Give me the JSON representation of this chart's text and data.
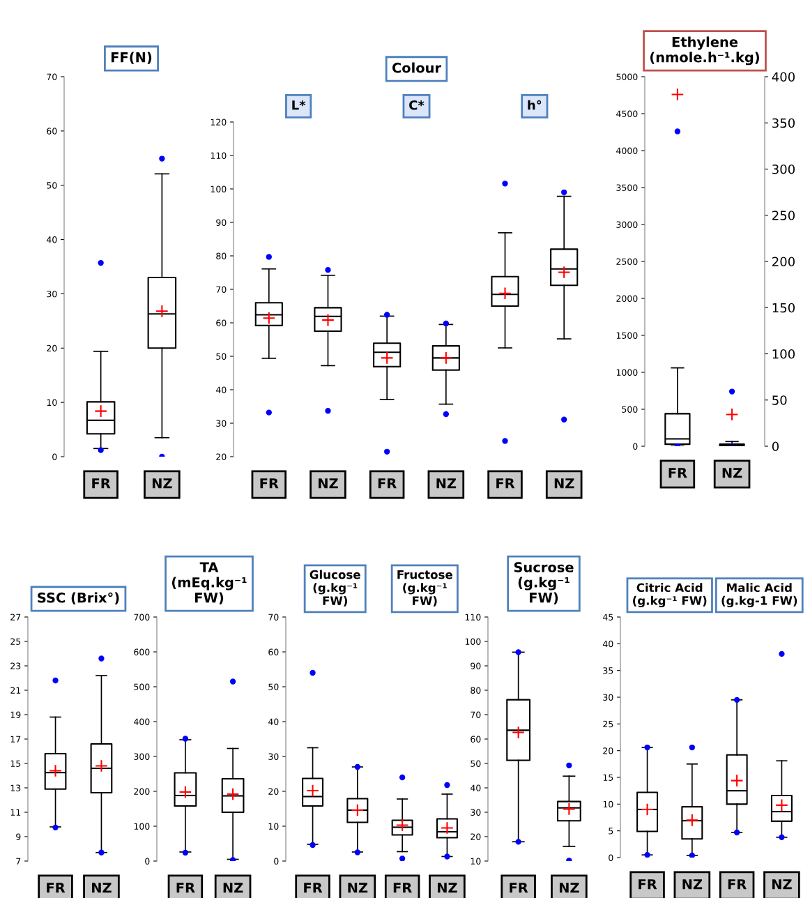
{
  "chart_data": [
    {
      "type": "box",
      "title": "FF(N)",
      "categories": [
        "FR",
        "NZ"
      ],
      "ylim": [
        0,
        70
      ],
      "yticks": [
        0,
        10,
        20,
        30,
        40,
        50,
        60,
        70
      ],
      "grid": false,
      "boxes": [
        {
          "low": 1.5,
          "q1": 4.2,
          "median": 6.7,
          "q3": 10.1,
          "high": 19.4,
          "mean": 8.4,
          "outliers": [
            35.7,
            1.2
          ]
        },
        {
          "low": 3.5,
          "q1": 20,
          "median": 26.3,
          "q3": 33,
          "high": 52.1,
          "mean": 26.8,
          "outliers": [
            54.9,
            0
          ]
        }
      ]
    },
    {
      "type": "box",
      "title": "Colour",
      "annotations": [
        "L*",
        "C*",
        "h°"
      ],
      "categories": [
        "FR",
        "NZ",
        "FR",
        "NZ",
        "FR",
        "NZ"
      ],
      "ylim": [
        20,
        120
      ],
      "yticks": [
        20,
        30,
        40,
        50,
        60,
        70,
        80,
        90,
        100,
        110,
        120
      ],
      "grid": false,
      "boxes": [
        {
          "low": 49.4,
          "q1": 59.2,
          "median": 62.4,
          "q3": 66,
          "high": 76.1,
          "mean": 61.4,
          "outliers": [
            79.7,
            33.2
          ]
        },
        {
          "low": 47.2,
          "q1": 57.5,
          "median": 61.9,
          "q3": 64.5,
          "high": 74.2,
          "mean": 60.8,
          "outliers": [
            75.8,
            33.7
          ]
        },
        {
          "low": 37.1,
          "q1": 46.9,
          "median": 51.2,
          "q3": 53.9,
          "high": 62,
          "mean": 49.5,
          "outliers": [
            62.4,
            21.5
          ]
        },
        {
          "low": 35.7,
          "q1": 45.9,
          "median": 49.5,
          "q3": 53.1,
          "high": 59.5,
          "mean": 49.5,
          "outliers": [
            59.8,
            32.7
          ]
        },
        {
          "low": 52.5,
          "q1": 65,
          "median": 68.5,
          "q3": 73.8,
          "high": 86.9,
          "mean": 68.8,
          "outliers": [
            101.6,
            24.7
          ]
        },
        {
          "low": 55.2,
          "q1": 71.2,
          "median": 76.1,
          "q3": 82,
          "high": 97.8,
          "mean": 75.1,
          "outliers": [
            99,
            31.1
          ]
        }
      ]
    },
    {
      "type": "box",
      "title": "Ethylene\n(nmole.h⁻¹.kg)",
      "categories": [
        "FR",
        "NZ"
      ],
      "ylim": [
        0,
        5000
      ],
      "yticks": [
        0,
        500,
        1000,
        1500,
        2000,
        2500,
        3000,
        3500,
        4000,
        4500,
        5000
      ],
      "y2lim": [
        0,
        400
      ],
      "y2ticks": [
        0,
        50,
        100,
        150,
        200,
        250,
        300,
        350,
        400
      ],
      "grid": false,
      "boxes": [
        {
          "low": 0,
          "q1": 27,
          "median": 99,
          "q3": 440,
          "high": 1060,
          "mean": 4760,
          "outliers": [
            4260,
            0
          ]
        },
        {
          "low": 0,
          "q1": 9,
          "median": 18,
          "q3": 27,
          "high": 63,
          "mean": 430,
          "outliers": [
            740,
            0
          ]
        }
      ]
    },
    {
      "type": "box",
      "title": "SSC (Brix°)",
      "categories": [
        "FR",
        "NZ"
      ],
      "ylim": [
        7,
        27
      ],
      "yticks": [
        7,
        9,
        11,
        13,
        15,
        17,
        19,
        21,
        23,
        25,
        27
      ],
      "grid": false,
      "boxes": [
        {
          "low": 9.8,
          "q1": 12.9,
          "median": 14.25,
          "q3": 15.8,
          "high": 18.8,
          "mean": 14.4,
          "outliers": [
            21.8,
            9.75
          ]
        },
        {
          "low": 7.7,
          "q1": 12.6,
          "median": 14.6,
          "q3": 16.6,
          "high": 22.2,
          "mean": 14.8,
          "outliers": [
            23.6,
            7.7
          ]
        }
      ]
    },
    {
      "type": "box",
      "title": "TA\n(mEq.kg⁻¹\nFW)",
      "categories": [
        "FR",
        "NZ"
      ],
      "ylim": [
        0,
        700
      ],
      "yticks": [
        0,
        100,
        200,
        300,
        400,
        500,
        600,
        700
      ],
      "grid": false,
      "boxes": [
        {
          "low": 26,
          "q1": 158,
          "median": 188,
          "q3": 253,
          "high": 348,
          "mean": 198,
          "outliers": [
            351,
            24
          ]
        },
        {
          "low": 5,
          "q1": 140,
          "median": 187,
          "q3": 236,
          "high": 323,
          "mean": 192,
          "outliers": [
            515,
            3
          ]
        }
      ]
    },
    {
      "type": "box",
      "annotations": [
        "Glucose\n(g.kg⁻¹\nFW)",
        "Fructose\n(g.kg⁻¹\nFW)"
      ],
      "categories": [
        "FR",
        "NZ",
        "FR",
        "NZ"
      ],
      "ylim": [
        0,
        70
      ],
      "yticks": [
        0,
        10,
        20,
        30,
        40,
        50,
        60,
        70
      ],
      "grid": false,
      "boxes": [
        {
          "low": 4.8,
          "q1": 15.8,
          "median": 18.5,
          "q3": 23.7,
          "high": 32.5,
          "mean": 20.2,
          "outliers": [
            54,
            4.6
          ]
        },
        {
          "low": 2.6,
          "q1": 11.1,
          "median": 14.6,
          "q3": 17.9,
          "high": 27,
          "mean": 14.6,
          "outliers": [
            27,
            2.5
          ]
        },
        {
          "low": 2.7,
          "q1": 7.5,
          "median": 9.7,
          "q3": 11.7,
          "high": 17.8,
          "mean": 10.3,
          "outliers": [
            24,
            0.7
          ]
        },
        {
          "low": 1.3,
          "q1": 6.7,
          "median": 8.4,
          "q3": 12.1,
          "high": 19.2,
          "mean": 9.5,
          "outliers": [
            21.8,
            1.3
          ]
        }
      ]
    },
    {
      "type": "box",
      "title": "Sucrose\n(g.kg⁻¹\nFW)",
      "categories": [
        "FR",
        "NZ"
      ],
      "ylim": [
        10,
        110
      ],
      "yticks": [
        10,
        20,
        30,
        40,
        50,
        60,
        70,
        80,
        90,
        100,
        110
      ],
      "grid": false,
      "boxes": [
        {
          "low": 17.9,
          "q1": 51.3,
          "median": 63.6,
          "q3": 76.1,
          "high": 95.6,
          "mean": 62.7,
          "outliers": [
            95.6,
            17.9
          ]
        },
        {
          "low": 16,
          "q1": 26.5,
          "median": 31.8,
          "q3": 34.4,
          "high": 44.8,
          "mean": 31.3,
          "outliers": [
            49.2,
            10.2
          ]
        }
      ]
    },
    {
      "type": "box",
      "annotations": [
        "Citric Acid\n(g.kg⁻¹ FW)",
        "Malic Acid\n(g.kg-1 FW)"
      ],
      "categories": [
        "FR",
        "NZ",
        "FR",
        "NZ"
      ],
      "ylim": [
        0,
        45
      ],
      "yticks": [
        0,
        5,
        10,
        15,
        20,
        25,
        30,
        35,
        40,
        45
      ],
      "grid": false,
      "boxes": [
        {
          "low": 0.5,
          "q1": 4.9,
          "median": 9,
          "q3": 12.2,
          "high": 20.6,
          "mean": 9,
          "outliers": [
            20.6,
            0.5
          ]
        },
        {
          "low": 0.4,
          "q1": 3.5,
          "median": 6.9,
          "q3": 9.5,
          "high": 17.5,
          "mean": 7,
          "outliers": [
            20.6,
            0.4
          ]
        },
        {
          "low": 4.7,
          "q1": 10,
          "median": 12.5,
          "q3": 19.2,
          "high": 29.5,
          "mean": 14.4,
          "outliers": [
            29.5,
            4.7
          ]
        },
        {
          "low": 3.8,
          "q1": 6.8,
          "median": 8.6,
          "q3": 11.6,
          "high": 18.1,
          "mean": 9.8,
          "outliers": [
            38.1,
            3.8
          ]
        }
      ]
    }
  ]
}
